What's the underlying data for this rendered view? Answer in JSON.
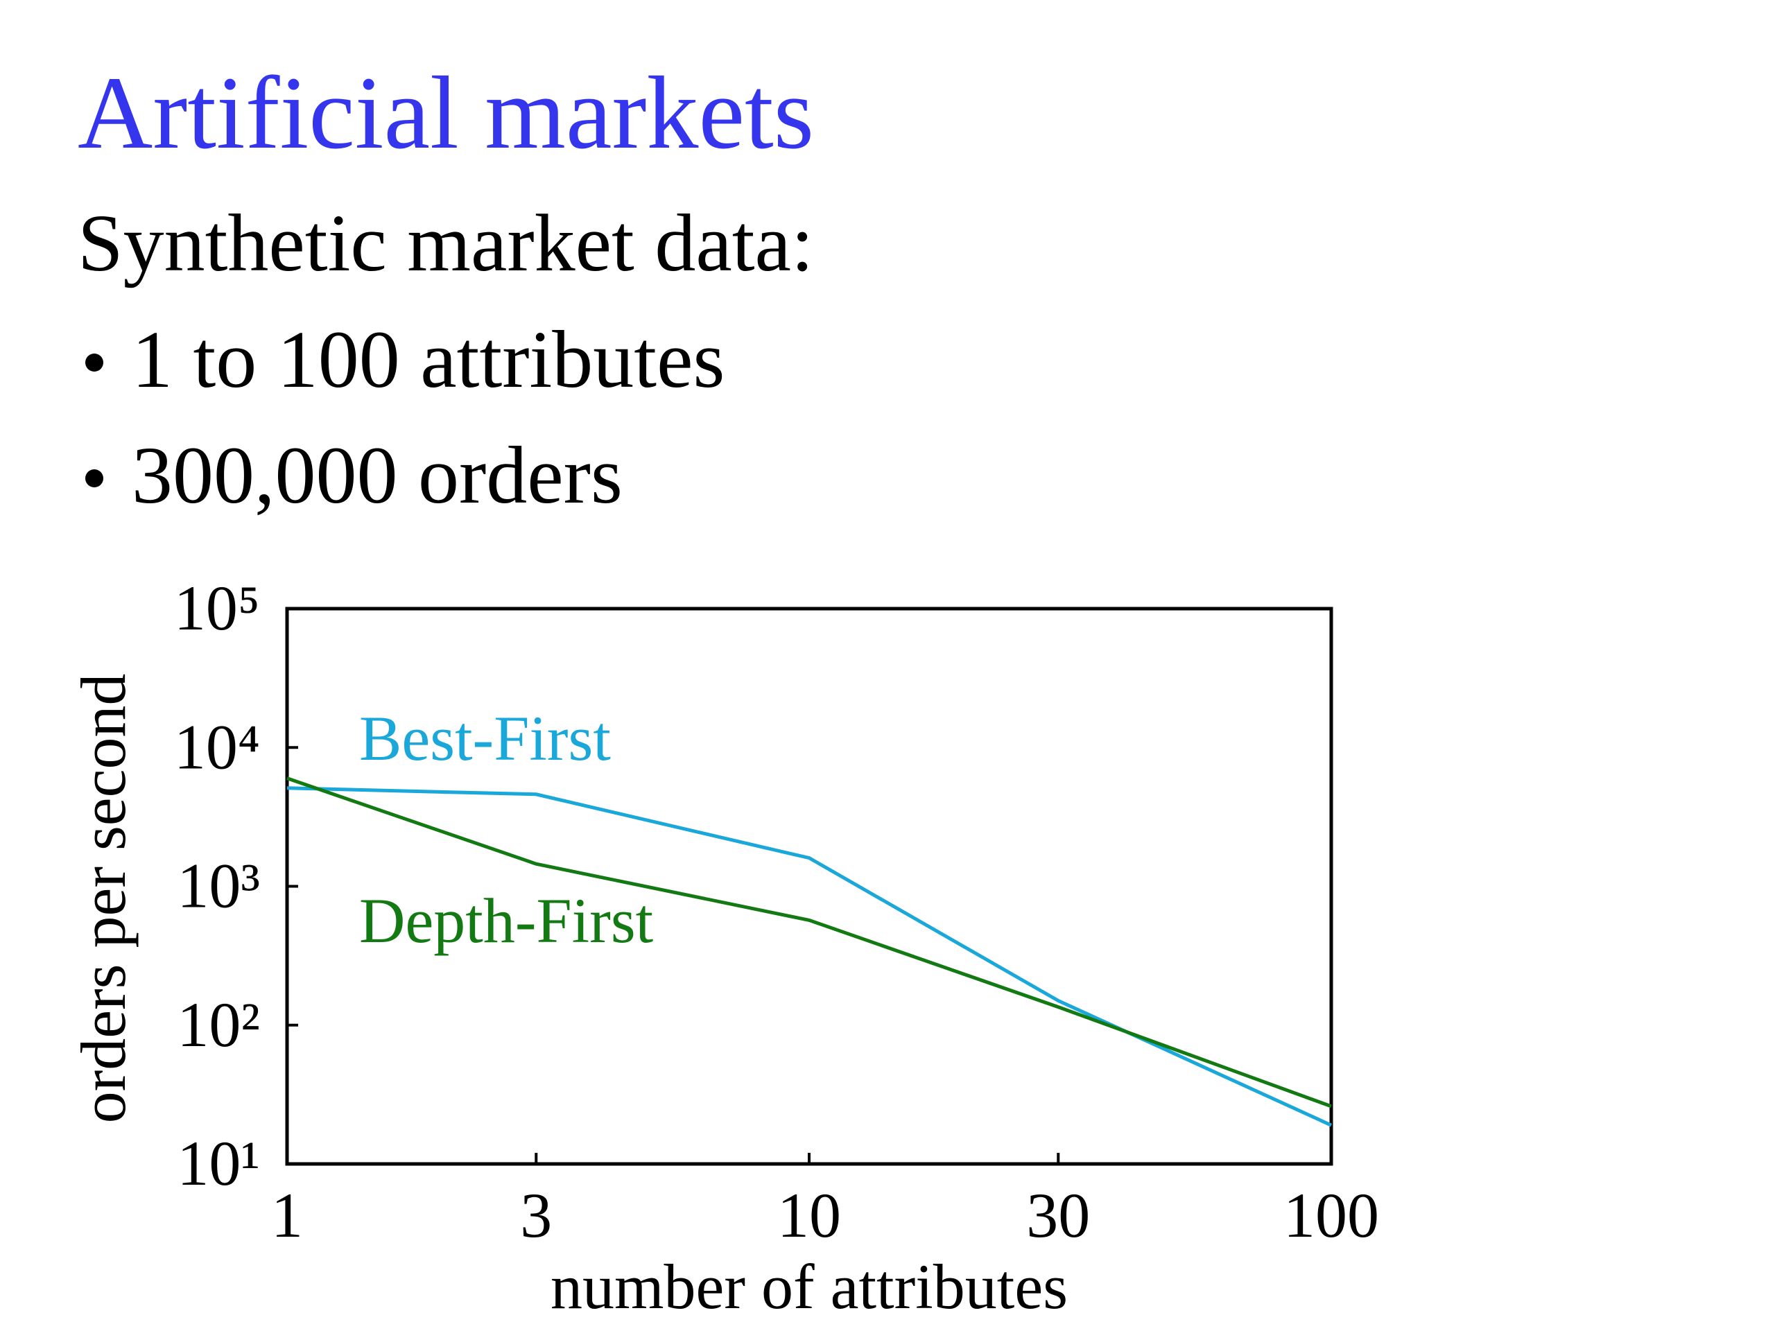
{
  "header": {
    "title": "Artificial markets",
    "subtitle": "Synthetic market data:",
    "bullets": [
      "1 to 100 attributes",
      "300,000 orders"
    ]
  },
  "chart_data": {
    "type": "line",
    "x_label": "number of attributes",
    "y_label": "orders per second",
    "x": [
      1,
      3,
      10,
      30,
      100
    ],
    "xscale": "log",
    "yscale": "log",
    "xlim": [
      1,
      100
    ],
    "xticks": [
      1,
      3,
      10,
      30,
      100
    ],
    "ylim": [
      10,
      100000
    ],
    "yticks": [
      {
        "value": 10,
        "label": "10¹"
      },
      {
        "value": 100,
        "label": "10²"
      },
      {
        "value": 1000,
        "label": "10³"
      },
      {
        "value": 10000,
        "label": "10⁴"
      },
      {
        "value": 100000,
        "label": "10⁵"
      }
    ],
    "series": [
      {
        "name": "Best-First",
        "color": "#1aa7d9",
        "values": [
          5100,
          4600,
          1600,
          150,
          19
        ]
      },
      {
        "name": "Depth-First",
        "color": "#137a13",
        "values": [
          6000,
          1450,
          570,
          135,
          26
        ]
      }
    ]
  }
}
